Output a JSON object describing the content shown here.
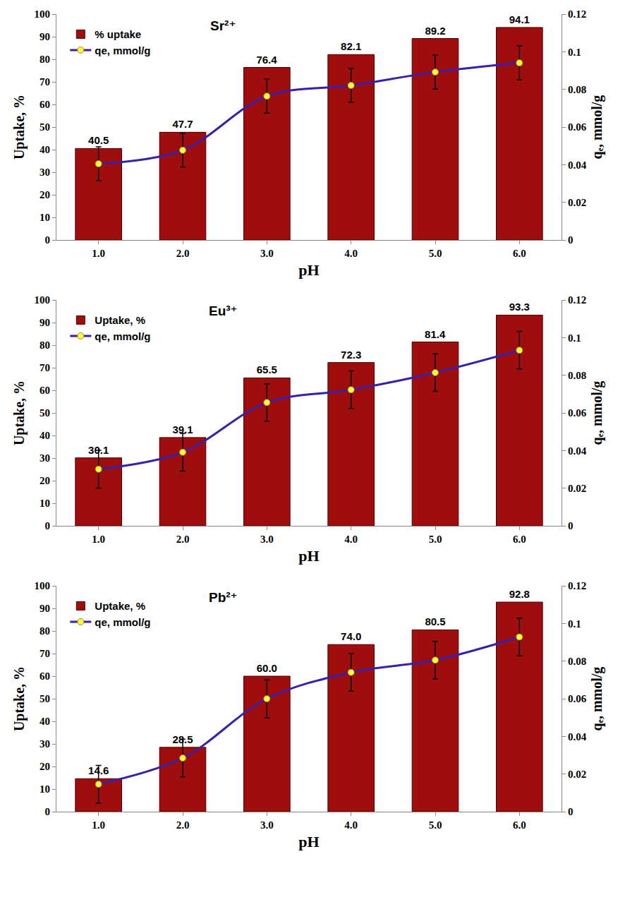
{
  "chart_data": [
    {
      "type": "bar",
      "title": "Sr²⁺",
      "x_label": "pH",
      "y_label": "Uptake, %",
      "y2_label": "qₑ, mmol/g",
      "categories": [
        "1.0",
        "2.0",
        "3.0",
        "4.0",
        "5.0",
        "6.0"
      ],
      "series": [
        {
          "name": "% uptake",
          "type": "bar",
          "color": "#a00d0d",
          "data_labels": true,
          "values": [
            40.5,
            47.7,
            76.4,
            82.1,
            89.2,
            94.1
          ],
          "value_labels": [
            "40.5",
            "47.7",
            "76.4",
            "82.1",
            "89.2",
            "94.1"
          ]
        },
        {
          "name": "qe, mmol/g",
          "type": "line",
          "axis": "y2",
          "color": "#3a1fa8",
          "marker": "circle",
          "values": [
            0.0405,
            0.0477,
            0.0764,
            0.0821,
            0.0892,
            0.0941
          ],
          "errors": [
            0.009,
            0.009,
            0.009,
            0.009,
            0.009,
            0.009
          ]
        }
      ],
      "ylim": [
        0,
        100
      ],
      "yticks": [
        0,
        10,
        20,
        30,
        40,
        50,
        60,
        70,
        80,
        90,
        100
      ],
      "y2lim": [
        0,
        0.12
      ],
      "y2ticks": [
        0,
        0.02,
        0.04,
        0.06,
        0.08,
        0.1,
        0.12
      ],
      "legend": "top-left",
      "grid": false
    },
    {
      "type": "bar",
      "title": "Eu³⁺",
      "x_label": "pH",
      "y_label": "Uptake, %",
      "y2_label": "qₑ, mmol/g",
      "categories": [
        "1.0",
        "2.0",
        "3.0",
        "4.0",
        "5.0",
        "6.0"
      ],
      "series": [
        {
          "name": "Uptake, %",
          "type": "bar",
          "color": "#a00d0d",
          "data_labels": true,
          "values": [
            30.1,
            39.1,
            65.5,
            72.3,
            81.4,
            93.3
          ],
          "value_labels": [
            "30.1",
            "39.1",
            "65.5",
            "72.3",
            "81.4",
            "93.3"
          ]
        },
        {
          "name": "qe, mmol/g",
          "type": "line",
          "axis": "y2",
          "color": "#3a1fa8",
          "marker": "circle",
          "values": [
            0.0301,
            0.0391,
            0.0655,
            0.0723,
            0.0814,
            0.0933
          ],
          "errors": [
            0.01,
            0.01,
            0.01,
            0.01,
            0.01,
            0.01
          ]
        }
      ],
      "ylim": [
        0,
        100
      ],
      "yticks": [
        0,
        10,
        20,
        30,
        40,
        50,
        60,
        70,
        80,
        90,
        100
      ],
      "y2lim": [
        0,
        0.12
      ],
      "y2ticks": [
        0,
        0.02,
        0.04,
        0.06,
        0.08,
        0.1,
        0.12
      ],
      "legend": "top-left",
      "grid": false
    },
    {
      "type": "bar",
      "title": "Pb²⁺",
      "x_label": "pH",
      "y_label": "Uptake, %",
      "y2_label": "qₑ, mmol/g",
      "categories": [
        "1.0",
        "2.0",
        "3.0",
        "4.0",
        "5.0",
        "6.0"
      ],
      "series": [
        {
          "name": "Uptake, %",
          "type": "bar",
          "color": "#a00d0d",
          "data_labels": true,
          "values": [
            14.6,
            28.5,
            60.0,
            74.0,
            80.5,
            92.8
          ],
          "value_labels": [
            "14.6",
            "28.5",
            "60.0",
            "74.0",
            "80.5",
            "92.8"
          ]
        },
        {
          "name": "qe, mmol/g",
          "type": "line",
          "axis": "y2",
          "color": "#3a1fa8",
          "marker": "circle",
          "values": [
            0.0146,
            0.0285,
            0.06,
            0.074,
            0.0805,
            0.0928
          ],
          "errors": [
            0.01,
            0.01,
            0.01,
            0.01,
            0.01,
            0.01
          ]
        }
      ],
      "ylim": [
        0,
        100
      ],
      "yticks": [
        0,
        10,
        20,
        30,
        40,
        50,
        60,
        70,
        80,
        90,
        100
      ],
      "y2lim": [
        0,
        0.12
      ],
      "y2ticks": [
        0,
        0.02,
        0.04,
        0.06,
        0.08,
        0.1,
        0.12
      ],
      "legend": "top-left",
      "grid": false
    }
  ]
}
